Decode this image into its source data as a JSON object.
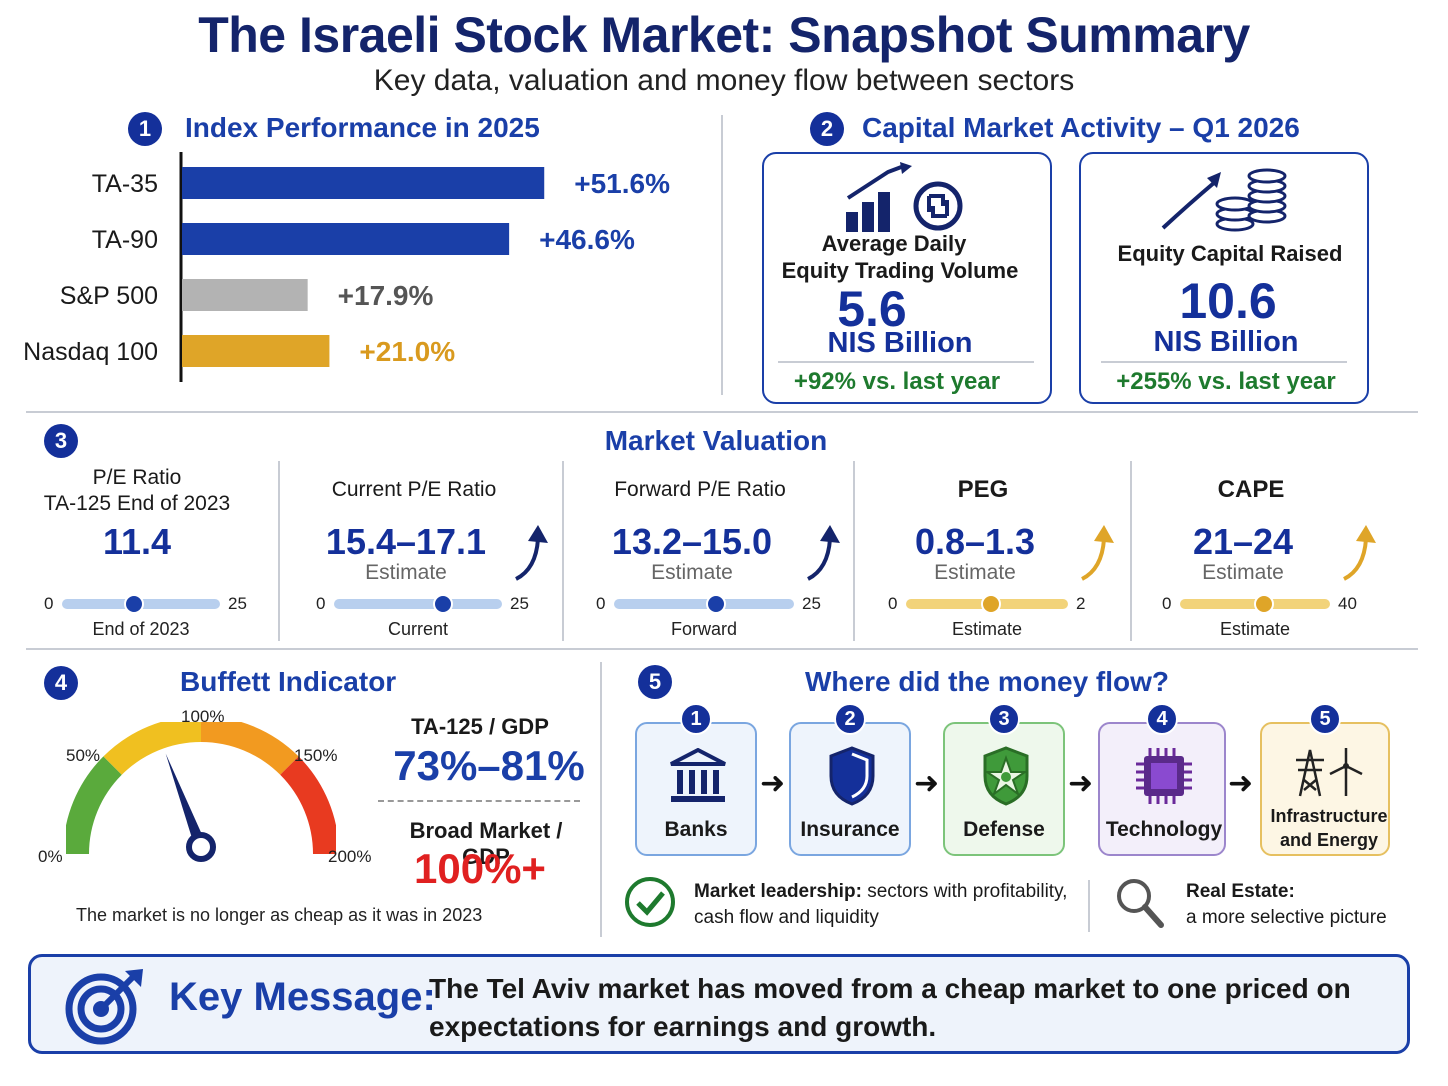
{
  "title": "The Israeli Stock Market: Snapshot Summary",
  "subtitle": "Key data, valuation and money flow between sectors",
  "colors": {
    "navy": "#14246b",
    "blue": "#1a3fa8",
    "gray": "#b3b3b3",
    "gold": "#dfa528",
    "green": "#1e7a2e",
    "red": "#e02020"
  },
  "section1": {
    "num": "1",
    "title": "Index Performance in 2025"
  },
  "chart_data": {
    "type": "bar",
    "orientation": "horizontal",
    "title": "Index Performance in 2025",
    "categories": [
      "TA-35",
      "TA-90",
      "S&P 500",
      "Nasdaq 100"
    ],
    "values": [
      51.6,
      46.6,
      17.9,
      21.0
    ],
    "value_labels": [
      "+51.6%",
      "+46.6%",
      "+17.9%",
      "+21.0%"
    ],
    "bar_colors": [
      "#1a3fa8",
      "#1a3fa8",
      "#b3b3b3",
      "#dfa528"
    ],
    "label_colors": [
      "#1a3fa8",
      "#1a3fa8",
      "#555555",
      "#d99a1e"
    ],
    "xlim": [
      0,
      60
    ],
    "grid": false
  },
  "section2": {
    "num": "2",
    "title": "Capital Market Activity – Q1 2026",
    "cards": [
      {
        "label_line1": "Average Daily",
        "label_line2": "Equity Trading Volume",
        "value": "5.6",
        "unit": "NIS Billion",
        "change": "+92% vs. last year",
        "icon": "bar-chart-shekel-icon"
      },
      {
        "label_line1": "Equity Capital Raised",
        "label_line2": "",
        "value": "10.6",
        "unit": "NIS Billion",
        "change": "+255% vs. last year",
        "icon": "rising-coins-icon"
      }
    ]
  },
  "section3": {
    "num": "3",
    "title": "Market Valuation",
    "metrics": [
      {
        "title_line1": "P/E Ratio",
        "title_line2": "TA-125 End of 2023",
        "value": "11.4",
        "estimate": "",
        "min": "0",
        "max": "25",
        "caption": "End of 2023",
        "level": 11.4,
        "scale_max": 25,
        "theme": "blue",
        "arrow": false
      },
      {
        "title_line1": "Current P/E Ratio",
        "title_line2": "",
        "value": "15.4–17.1",
        "estimate": "Estimate",
        "min": "0",
        "max": "25",
        "caption": "Current",
        "level": 16.25,
        "scale_max": 25,
        "theme": "blue",
        "arrow": true
      },
      {
        "title_line1": "Forward P/E Ratio",
        "title_line2": "",
        "value": "13.2–15.0",
        "estimate": "Estimate",
        "min": "0",
        "max": "25",
        "caption": "Forward",
        "level": 14.1,
        "scale_max": 25,
        "theme": "blue",
        "arrow": true
      },
      {
        "title_line1": "PEG",
        "title_line2": "",
        "value": "0.8–1.3",
        "estimate": "Estimate",
        "min": "0",
        "max": "2",
        "caption": "Estimate",
        "level": 1.05,
        "scale_max": 2,
        "theme": "gold",
        "arrow": true
      },
      {
        "title_line1": "CAPE",
        "title_line2": "",
        "value": "21–24",
        "estimate": "Estimate",
        "min": "0",
        "max": "40",
        "caption": "Estimate",
        "level": 22.5,
        "scale_max": 40,
        "theme": "gold",
        "arrow": true
      }
    ]
  },
  "section4": {
    "num": "4",
    "title": "Buffett Indicator",
    "gauge": {
      "l0": "0%",
      "l50": "50%",
      "l100": "100%",
      "l150": "150%",
      "l200": "200%",
      "needle_value": 77,
      "scale_max": 200
    },
    "ratio1_label": "TA-125 / GDP",
    "ratio1_value": "73%–81%",
    "ratio2_label": "Broad Market / GDP",
    "ratio2_value": "100%+",
    "note": "The market is no longer as cheap as it was in 2023"
  },
  "section5": {
    "num": "5",
    "title": "Where did the money flow?",
    "sectors": [
      {
        "num": "1",
        "label": "Banks",
        "label2": "",
        "icon": "bank-icon"
      },
      {
        "num": "2",
        "label": "Insurance",
        "label2": "",
        "icon": "shield-icon"
      },
      {
        "num": "3",
        "label": "Defense",
        "label2": "",
        "icon": "defense-shield-star-icon"
      },
      {
        "num": "4",
        "label": "Technology",
        "label2": "",
        "icon": "chip-icon"
      },
      {
        "num": "5",
        "label": "Infrastructure",
        "label2": "and Energy",
        "icon": "power-tower-wind-icon"
      }
    ],
    "leadership_bold": "Market leadership:",
    "leadership_rest": "sectors with profitability,",
    "leadership_line2": "cash flow and liquidity",
    "realestate_bold": "Real Estate:",
    "realestate_line2": "a more selective picture"
  },
  "key_message": {
    "label": "Key Message:",
    "line1": "The Tel Aviv market has moved from a cheap market to one priced on",
    "line2": "expectations for earnings and growth."
  }
}
